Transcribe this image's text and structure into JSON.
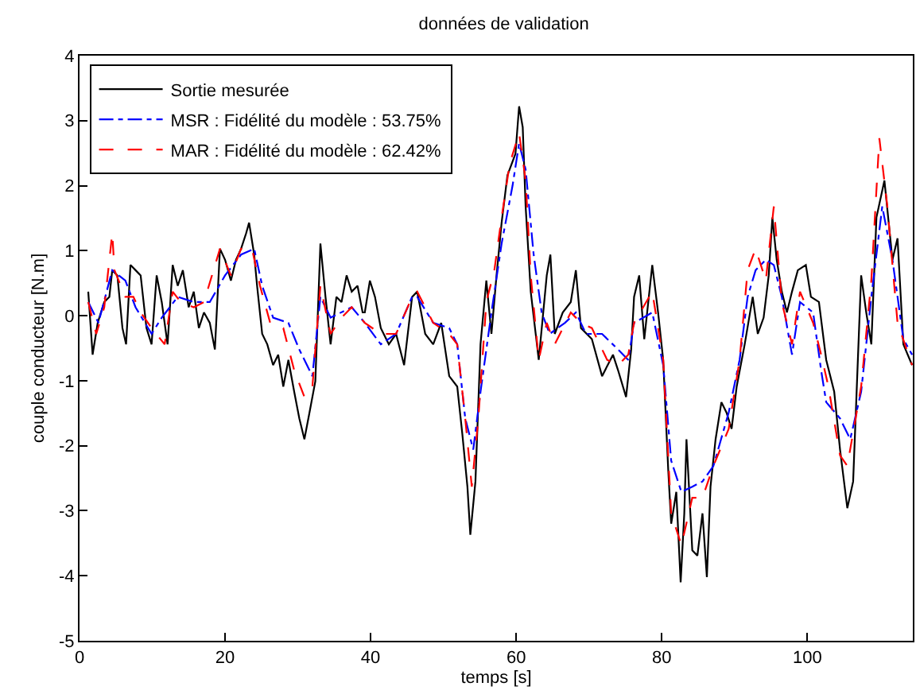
{
  "chart_data": {
    "type": "line",
    "title": "données de validation",
    "xlabel": "temps [s]",
    "ylabel": "couple conducteur [N.m]",
    "xlim": [
      0,
      114.5
    ],
    "ylim": [
      -5,
      4
    ],
    "xticks": [
      0,
      20,
      40,
      60,
      80,
      100
    ],
    "yticks": [
      -5,
      -4,
      -3,
      -2,
      -1,
      0,
      1,
      2,
      3,
      4
    ],
    "legend": "top left",
    "marker": "none",
    "series": [
      {
        "name": "Sortie mesurée",
        "color": "#000000",
        "line_style": "solid",
        "x": [
          1.2,
          1.8,
          2.5,
          3.4,
          4.1,
          4.5,
          5.2,
          5.9,
          6.4,
          7.0,
          7.7,
          8.4,
          9.2,
          9.9,
          10.6,
          11.3,
          12.1,
          12.8,
          13.5,
          14.2,
          15.0,
          15.7,
          16.4,
          17.1,
          17.9,
          18.6,
          19.3,
          20.0,
          20.8,
          21.5,
          22.2,
          22.9,
          23.3,
          24.0,
          24.4,
          25.1,
          25.8,
          26.6,
          27.3,
          28.0,
          28.7,
          29.5,
          30.2,
          30.9,
          31.6,
          32.4,
          33.1,
          33.8,
          34.5,
          35.3,
          36.0,
          36.7,
          37.4,
          38.2,
          38.9,
          39.2,
          39.9,
          40.6,
          41.4,
          42.5,
          43.5,
          44.6,
          45.7,
          46.4,
          47.5,
          48.6,
          49.7,
          50.8,
          51.9,
          52.6,
          53.3,
          53.7,
          54.4,
          55.1,
          55.9,
          56.6,
          57.3,
          58.0,
          58.8,
          59.9,
          60.4,
          60.9,
          61.3,
          62.0,
          63.1,
          64.2,
          64.7,
          65.3,
          66.4,
          67.5,
          68.2,
          68.9,
          70.4,
          71.8,
          73.3,
          74.0,
          75.1,
          75.8,
          76.2,
          76.9,
          77.6,
          78.7,
          79.5,
          80.2,
          80.9,
          81.3,
          82.0,
          82.6,
          83.1,
          83.4,
          84.2,
          84.9,
          85.6,
          86.2,
          86.7,
          87.4,
          88.2,
          88.9,
          89.6,
          90.3,
          91.4,
          92.5,
          93.2,
          94.0,
          94.7,
          95.2,
          95.8,
          96.5,
          97.2,
          97.9,
          98.7,
          99.8,
          100.5,
          101.6,
          102.6,
          103.7,
          104.5,
          105.5,
          106.3,
          107.4,
          108.1,
          108.8,
          109.5,
          110.6,
          111.7,
          112.4,
          113.2,
          114.4
        ],
        "values": [
          0.37,
          -0.6,
          -0.11,
          0.21,
          0.29,
          0.7,
          0.62,
          -0.19,
          -0.44,
          0.78,
          0.7,
          0.62,
          -0.19,
          -0.44,
          0.62,
          0.21,
          -0.44,
          0.78,
          0.46,
          0.7,
          0.13,
          0.37,
          -0.19,
          0.05,
          -0.11,
          -0.52,
          1.03,
          0.86,
          0.54,
          0.86,
          1.03,
          1.27,
          1.43,
          0.94,
          0.46,
          -0.28,
          -0.44,
          -0.76,
          -0.6,
          -1.09,
          -0.68,
          -1.17,
          -1.58,
          -1.9,
          -1.49,
          -1.01,
          1.11,
          0.29,
          -0.44,
          0.29,
          0.21,
          0.62,
          0.37,
          0.46,
          0.05,
          0.05,
          0.54,
          0.29,
          -0.19,
          -0.44,
          -0.28,
          -0.76,
          0.29,
          0.37,
          -0.28,
          -0.44,
          -0.11,
          -0.93,
          -1.09,
          -1.82,
          -2.63,
          -3.37,
          -2.55,
          -0.44,
          0.54,
          -0.28,
          0.62,
          1.43,
          2.16,
          2.49,
          3.22,
          2.9,
          1.68,
          0.37,
          -0.68,
          0.62,
          0.94,
          -0.28,
          0.05,
          0.21,
          0.7,
          -0.19,
          -0.36,
          -0.93,
          -0.6,
          -0.84,
          -1.25,
          -0.52,
          0.29,
          0.62,
          -0.36,
          0.78,
          0.05,
          -0.68,
          -2.39,
          -3.2,
          -2.71,
          -4.1,
          -3.04,
          -1.9,
          -3.61,
          -3.69,
          -3.04,
          -4.02,
          -2.63,
          -1.9,
          -1.33,
          -1.49,
          -1.74,
          -1.09,
          -0.44,
          0.29,
          -0.28,
          -0.03,
          0.62,
          1.51,
          0.86,
          0.37,
          0.05,
          0.37,
          0.7,
          0.78,
          0.29,
          0.21,
          -0.68,
          -1.17,
          -2.06,
          -2.96,
          -2.55,
          0.62,
          0.05,
          -0.44,
          1.51,
          2.08,
          0.86,
          1.19,
          -0.44,
          -0.76
        ]
      },
      {
        "name": "MSR : Fidélité du modèle : 53.75%",
        "color": "#0000ff",
        "line_style": "dashdot",
        "x": [
          1.2,
          2.6,
          4.5,
          6.3,
          7.7,
          9.9,
          11.3,
          13.5,
          15.7,
          17.9,
          20.0,
          22.2,
          24.0,
          25.1,
          26.6,
          28.7,
          30.2,
          32.0,
          33.1,
          34.5,
          37.4,
          39.2,
          41.4,
          43.5,
          45.7,
          46.4,
          48.6,
          50.8,
          51.9,
          53.0,
          54.1,
          55.1,
          56.6,
          58.0,
          59.5,
          60.4,
          61.3,
          62.4,
          63.5,
          64.6,
          66.7,
          68.2,
          69.6,
          71.8,
          74.0,
          75.4,
          76.2,
          78.7,
          80.2,
          81.3,
          82.7,
          84.2,
          85.6,
          87.1,
          89.2,
          90.7,
          91.8,
          92.9,
          94.3,
          95.4,
          96.5,
          97.9,
          99.0,
          100.8,
          101.9,
          102.6,
          104.5,
          105.9,
          107.4,
          108.8,
          110.3,
          111.7,
          113.2,
          114.4
        ],
        "values": [
          0.21,
          -0.11,
          0.7,
          0.54,
          0.13,
          -0.28,
          -0.03,
          0.29,
          0.21,
          0.21,
          0.62,
          0.94,
          1.03,
          0.46,
          -0.03,
          -0.11,
          -0.52,
          -0.93,
          0.29,
          -0.03,
          0.13,
          -0.11,
          -0.44,
          -0.28,
          0.29,
          0.29,
          -0.11,
          -0.19,
          -0.44,
          -1.58,
          -2.06,
          -1.17,
          0.05,
          1.11,
          2.0,
          2.65,
          2.25,
          0.94,
          0.05,
          -0.28,
          -0.11,
          0.05,
          -0.28,
          -0.28,
          -0.52,
          -0.68,
          -0.11,
          0.05,
          -0.76,
          -2.23,
          -2.71,
          -2.63,
          -2.55,
          -2.31,
          -1.49,
          -0.68,
          0.29,
          0.7,
          0.86,
          0.78,
          0.29,
          -0.6,
          0.21,
          0.05,
          -0.84,
          -1.33,
          -1.58,
          -1.9,
          -1.17,
          0.29,
          1.68,
          0.86,
          -0.36,
          -0.6
        ]
      },
      {
        "name": "MAR : Fidélité du modèle : 62.42%",
        "color": "#ff0000",
        "line_style": "dashed",
        "x": [
          1.2,
          2.3,
          3.4,
          4.5,
          4.8,
          6.3,
          7.4,
          8.4,
          9.9,
          11.7,
          12.8,
          13.9,
          15.7,
          17.1,
          19.3,
          20.8,
          22.2,
          23.7,
          24.8,
          26.2,
          28.0,
          29.5,
          30.9,
          32.0,
          33.1,
          34.5,
          36.0,
          37.4,
          39.2,
          41.4,
          43.5,
          45.7,
          46.4,
          48.6,
          50.8,
          51.9,
          53.0,
          53.9,
          54.8,
          55.9,
          57.0,
          58.0,
          59.1,
          60.4,
          61.3,
          62.0,
          63.1,
          64.2,
          65.3,
          67.5,
          68.9,
          70.4,
          72.5,
          74.0,
          75.4,
          76.2,
          78.7,
          80.2,
          81.3,
          82.7,
          84.2,
          85.6,
          87.1,
          89.2,
          90.7,
          91.8,
          92.9,
          94.3,
          95.4,
          96.5,
          97.9,
          99.0,
          100.8,
          101.9,
          102.9,
          104.5,
          105.5,
          107.4,
          108.8,
          109.9,
          111.0,
          112.4,
          114.4
        ],
        "values": [
          0.21,
          -0.28,
          0.13,
          1.27,
          0.7,
          0.29,
          0.29,
          0.05,
          -0.19,
          -0.44,
          0.37,
          0.21,
          0.13,
          0.21,
          1.03,
          0.62,
          1.03,
          1.03,
          0.46,
          -0.11,
          -0.19,
          -0.84,
          -1.25,
          -1.09,
          0.46,
          -0.28,
          -0.03,
          0.13,
          -0.11,
          -0.28,
          -0.28,
          0.29,
          0.37,
          -0.11,
          -0.28,
          -0.44,
          -1.58,
          -2.63,
          -1.58,
          0.21,
          0.7,
          1.51,
          2.33,
          2.81,
          2.08,
          0.62,
          -0.68,
          -0.11,
          -0.44,
          0.05,
          -0.11,
          -0.19,
          -0.68,
          -0.76,
          -0.6,
          -0.11,
          0.37,
          -0.68,
          -3.04,
          -3.53,
          -2.8,
          -2.8,
          -2.31,
          -1.74,
          -0.68,
          0.7,
          1.03,
          0.54,
          1.68,
          0.21,
          -0.44,
          0.37,
          -0.11,
          -0.6,
          -1.09,
          -2.15,
          -2.31,
          -1.09,
          0.54,
          2.73,
          1.68,
          -0.11,
          -0.76
        ]
      }
    ]
  }
}
